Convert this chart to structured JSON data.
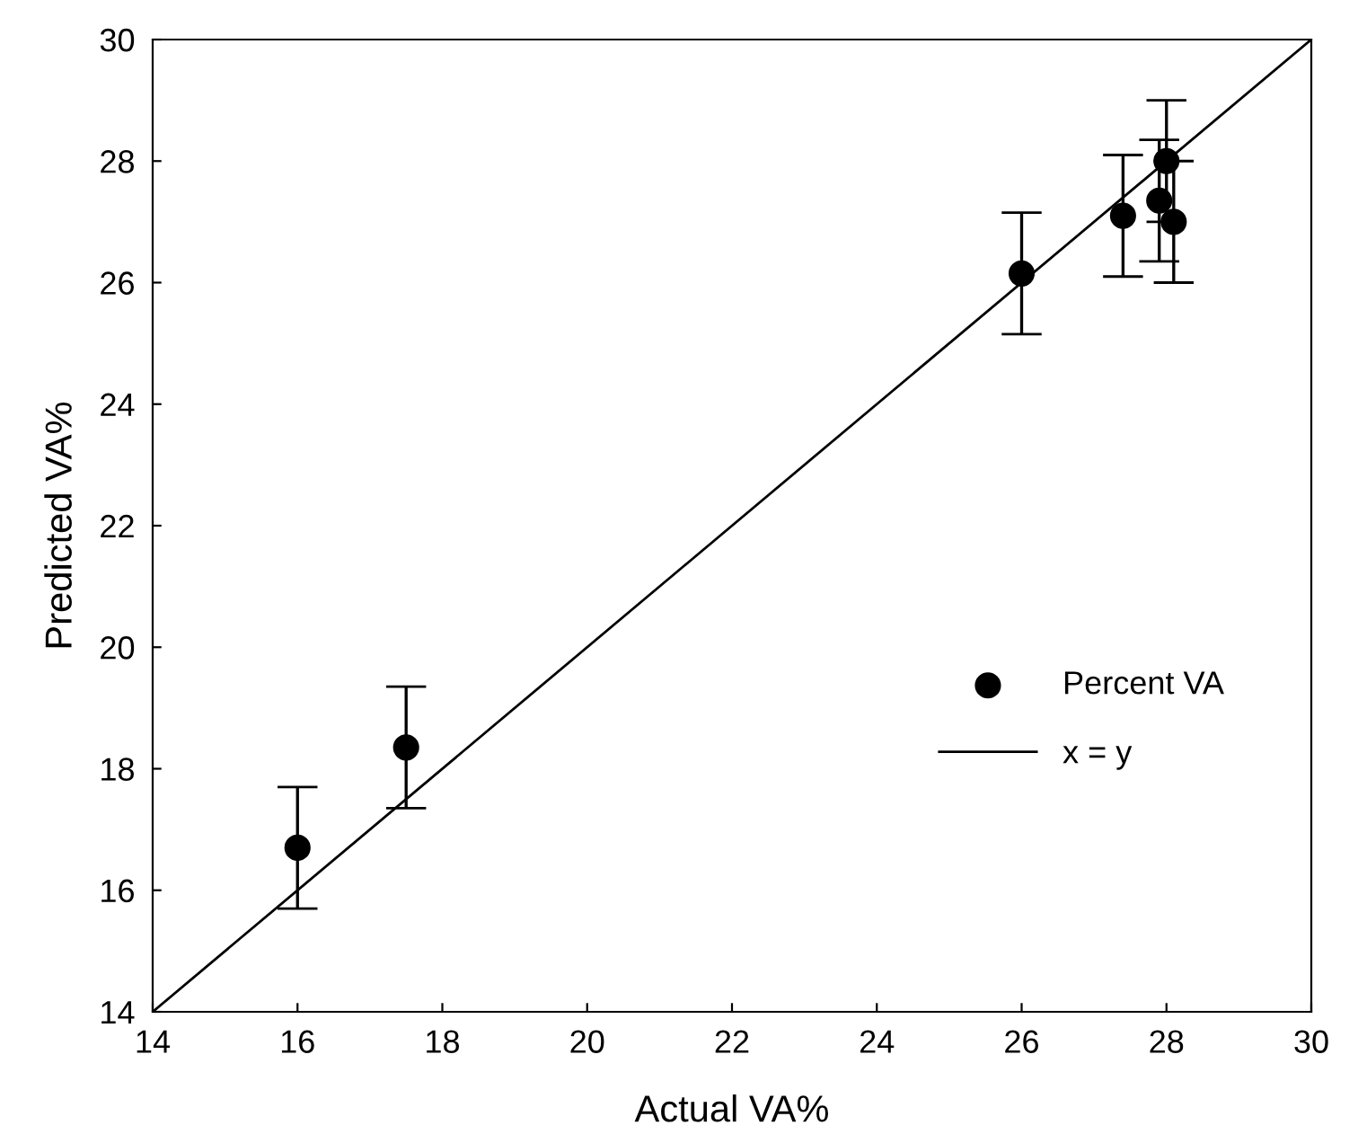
{
  "chart_data": {
    "type": "scatter",
    "xlabel": "Actual VA%",
    "ylabel": "Predicted VA%",
    "xlim": [
      14,
      30
    ],
    "ylim": [
      14,
      30
    ],
    "xticks": [
      14,
      16,
      18,
      20,
      22,
      24,
      26,
      28,
      30
    ],
    "yticks": [
      14,
      16,
      18,
      20,
      22,
      24,
      26,
      28,
      30
    ],
    "grid": false,
    "legend": "right",
    "series": [
      {
        "name": "Percent VA",
        "marker": "circle",
        "color": "#000000",
        "x": [
          16.0,
          17.5,
          26.0,
          27.4,
          27.9,
          28.0,
          28.1
        ],
        "values": [
          16.7,
          18.35,
          26.15,
          27.1,
          27.35,
          28.0,
          27.0
        ],
        "errors": [
          1,
          1,
          1,
          1,
          1,
          1,
          1
        ]
      },
      {
        "name": "x = y",
        "type": "line",
        "color": "#000000",
        "line_style": "solid",
        "marker": "none",
        "x": [
          14,
          30
        ],
        "values": [
          14,
          30
        ]
      }
    ]
  }
}
